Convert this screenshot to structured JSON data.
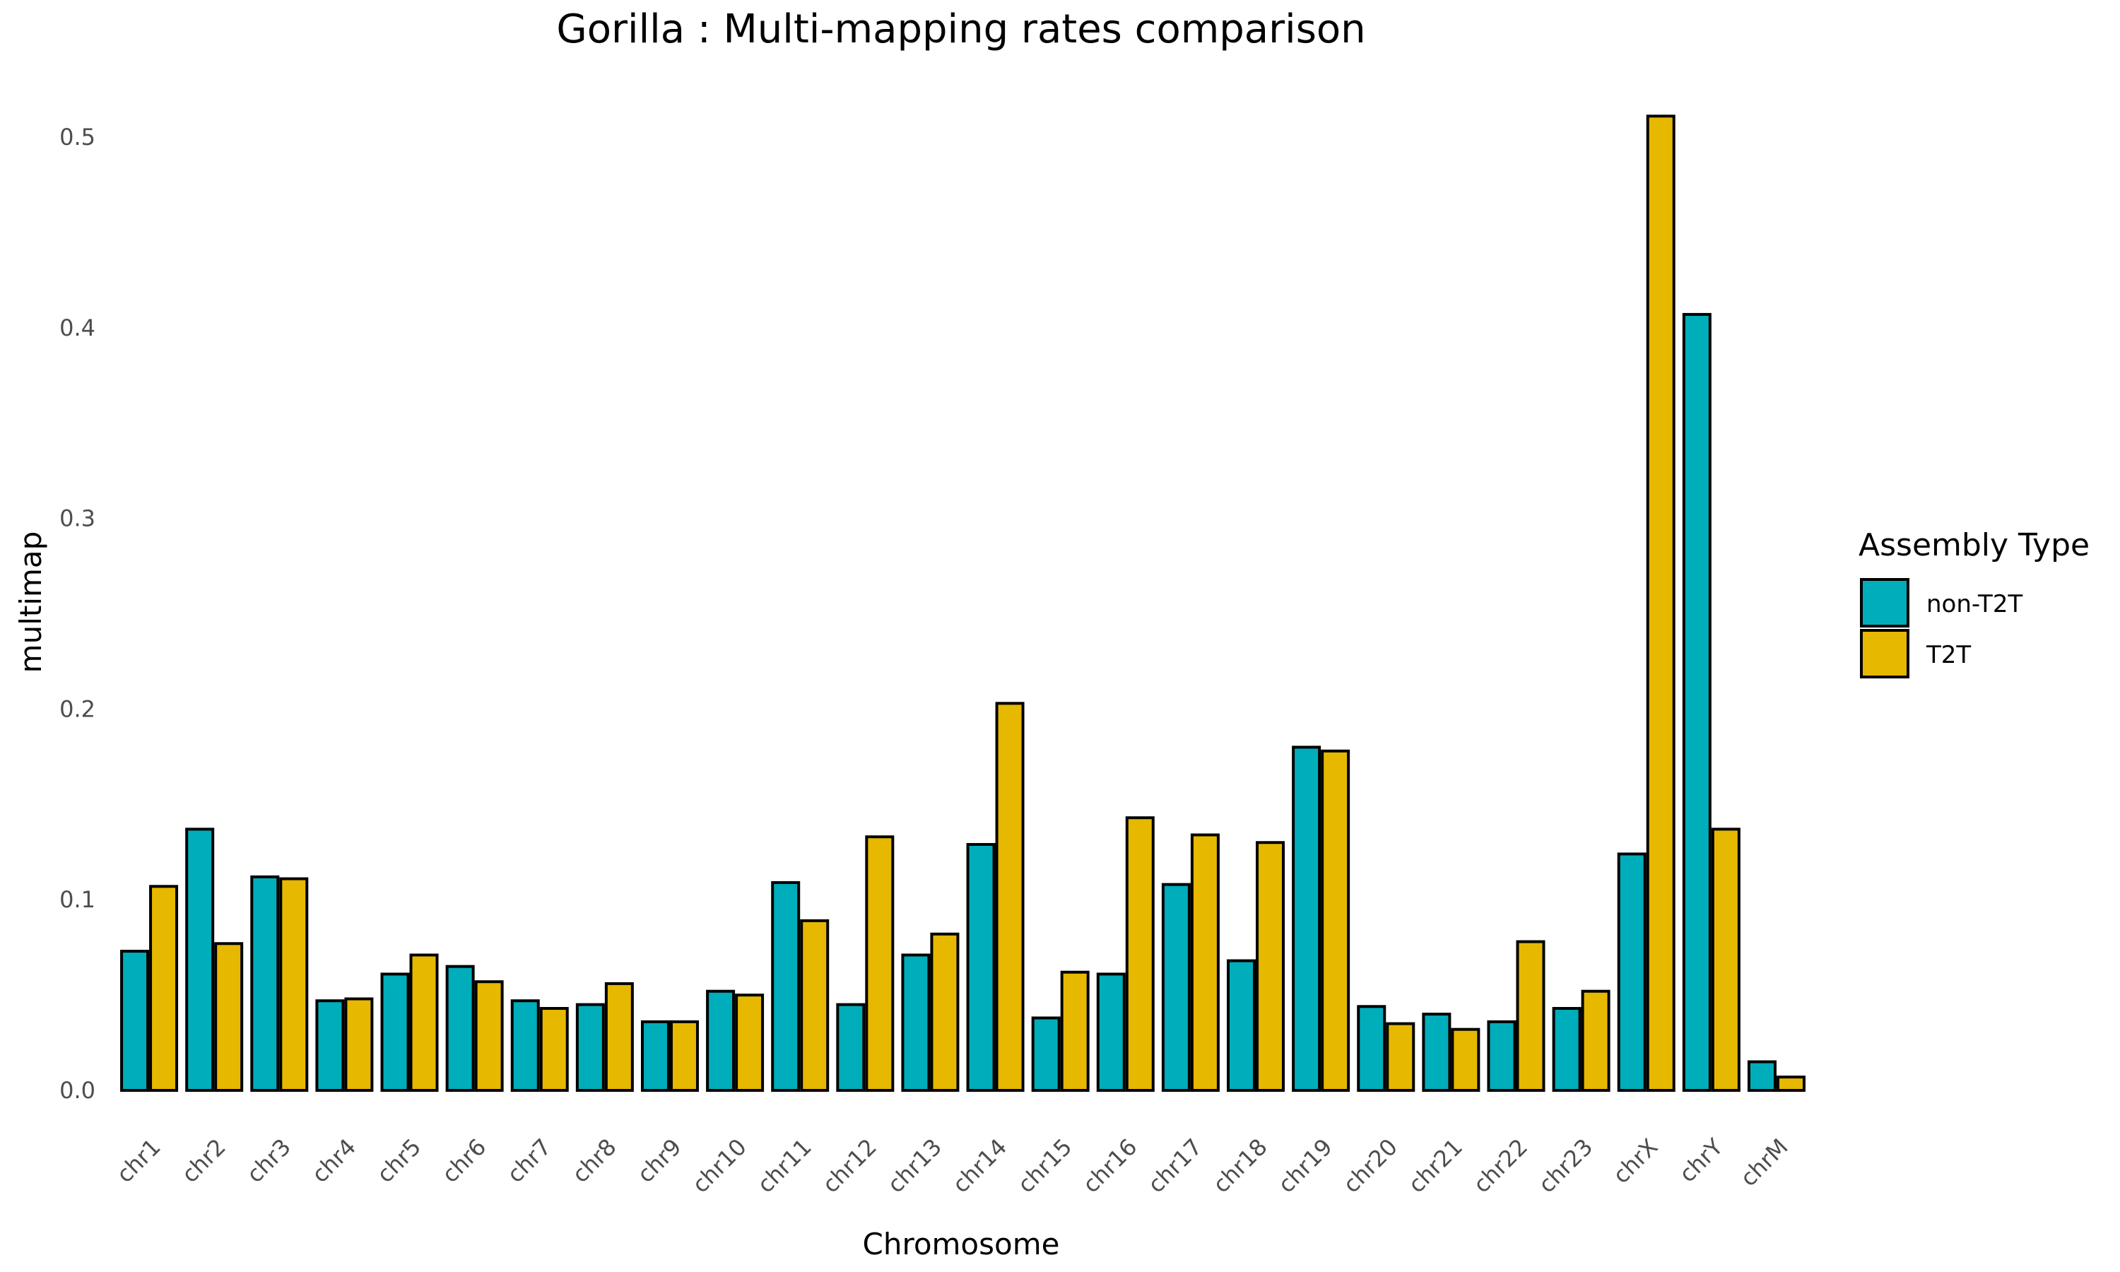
{
  "chart_data": {
    "type": "bar",
    "title": "Gorilla : Multi-mapping rates comparison",
    "xlabel": "Chromosome",
    "ylabel": "multimap",
    "ylim": [
      0,
      0.5
    ],
    "yticks": [
      "0.0",
      "0.1",
      "0.2",
      "0.3",
      "0.4",
      "0.5"
    ],
    "grid": false,
    "legend_position": "right",
    "legend_title": "Assembly Type",
    "categories": [
      "chr1",
      "chr2",
      "chr3",
      "chr4",
      "chr5",
      "chr6",
      "chr7",
      "chr8",
      "chr9",
      "chr10",
      "chr11",
      "chr12",
      "chr13",
      "chr14",
      "chr15",
      "chr16",
      "chr17",
      "chr18",
      "chr19",
      "chr20",
      "chr21",
      "chr22",
      "chr23",
      "chrX",
      "chrY",
      "chrM"
    ],
    "series": [
      {
        "name": "non-T2T",
        "color": "#00ADBA",
        "values": [
          0.073,
          0.137,
          0.112,
          0.047,
          0.061,
          0.065,
          0.047,
          0.045,
          0.036,
          0.052,
          0.109,
          0.045,
          0.071,
          0.129,
          0.038,
          0.061,
          0.108,
          0.068,
          0.18,
          0.044,
          0.04,
          0.036,
          0.043,
          0.124,
          0.407,
          0.015
        ]
      },
      {
        "name": "T2T",
        "color": "#E6B800",
        "values": [
          0.107,
          0.077,
          0.111,
          0.048,
          0.071,
          0.057,
          0.043,
          0.056,
          0.036,
          0.05,
          0.089,
          0.133,
          0.082,
          0.203,
          0.062,
          0.143,
          0.134,
          0.13,
          0.178,
          0.035,
          0.032,
          0.078,
          0.052,
          0.511,
          0.137,
          0.007
        ]
      }
    ]
  }
}
